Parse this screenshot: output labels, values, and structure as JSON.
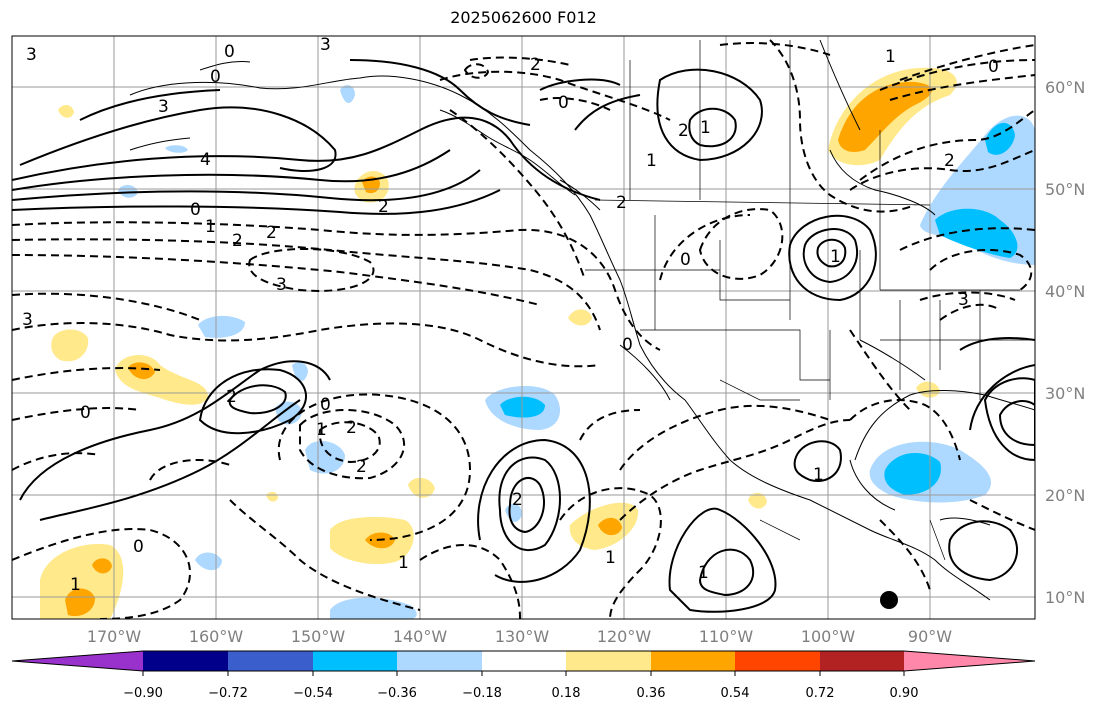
{
  "title": "2025062600 F012",
  "lat_labels": [
    "60°N",
    "50°N",
    "40°N",
    "30°N",
    "20°N",
    "10°N"
  ],
  "lon_labels": [
    "170°W",
    "160°W",
    "150°W",
    "140°W",
    "130°W",
    "120°W",
    "110°W",
    "100°W",
    "90°W"
  ],
  "colorbar": {
    "colors": [
      "#9932cc",
      "#00008b",
      "#3a5fcd",
      "#00bfff",
      "#add8ff",
      "#ffffff",
      "#ffe98a",
      "#ffa500",
      "#ff4500",
      "#b22222",
      "#ff88aa"
    ],
    "labels": [
      "−0.90",
      "−0.72",
      "−0.54",
      "−0.36",
      "−0.18",
      "0.18",
      "0.36",
      "0.54",
      "0.72",
      "0.90"
    ]
  },
  "contour_labels": [
    "3",
    "0",
    "3",
    "2",
    "0",
    "3",
    "4",
    "0",
    "1",
    "2",
    "2",
    "3",
    "3",
    "0",
    "2",
    "2",
    "1",
    "1",
    "2",
    "0",
    "2",
    "2",
    "1",
    "0",
    "1",
    "1",
    "3",
    "2",
    "1",
    "0",
    "1",
    "0",
    "1",
    "2",
    "0",
    "2",
    "1",
    "0",
    "1"
  ]
}
